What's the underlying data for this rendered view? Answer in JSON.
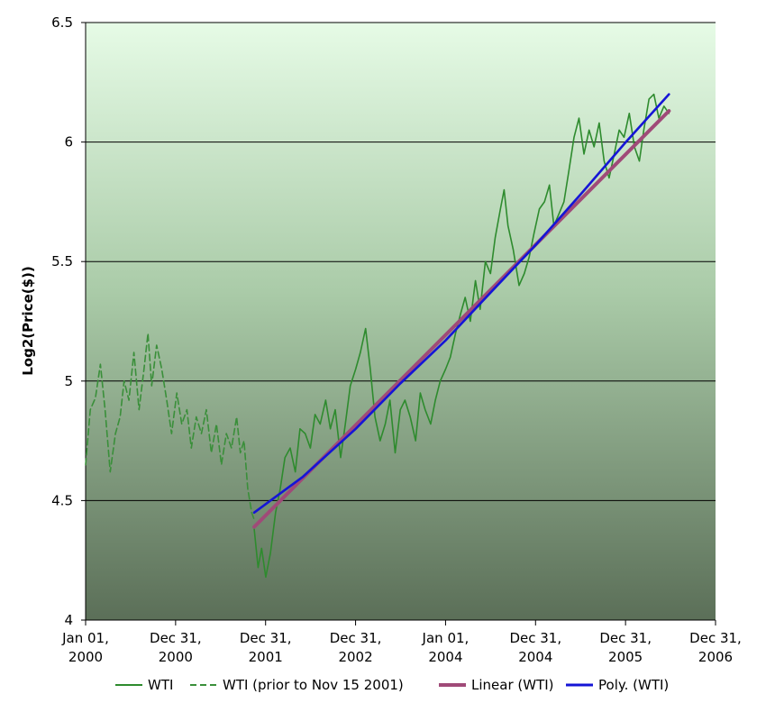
{
  "chart_data": {
    "type": "line",
    "title": "",
    "xlabel": "",
    "ylabel": "Log2(Price($))",
    "ylim": [
      4,
      6.5
    ],
    "y_ticks": [
      "4",
      "4.5",
      "5",
      "5.5",
      "6",
      "6.5"
    ],
    "xlim": [
      "2000-01-01",
      "2006-12-31"
    ],
    "x_ticks": [
      {
        "line1": "Jan 01,",
        "line2": "2000"
      },
      {
        "line1": "Dec 31,",
        "line2": "2000"
      },
      {
        "line1": "Dec 31,",
        "line2": "2001"
      },
      {
        "line1": "Dec 31,",
        "line2": "2002"
      },
      {
        "line1": "Jan 01,",
        "line2": "2004"
      },
      {
        "line1": "Dec 31,",
        "line2": "2004"
      },
      {
        "line1": "Dec 31,",
        "line2": "2005"
      },
      {
        "line1": "Dec 31,",
        "line2": "2006"
      }
    ],
    "grid": true,
    "legend_position": "bottom",
    "series": [
      {
        "name": "WTI (prior to Nov 15 2001)",
        "color": "#3a8f3a",
        "style": "dashed",
        "x": [
          "2000-01-01",
          "2000-01-20",
          "2000-02-10",
          "2000-03-01",
          "2000-03-20",
          "2000-04-10",
          "2000-05-01",
          "2000-05-20",
          "2000-06-05",
          "2000-06-25",
          "2000-07-15",
          "2000-08-05",
          "2000-08-25",
          "2000-09-10",
          "2000-09-25",
          "2000-10-15",
          "2000-11-05",
          "2000-11-25",
          "2000-12-15",
          "2001-01-05",
          "2001-01-25",
          "2001-02-15",
          "2001-03-05",
          "2001-03-25",
          "2001-04-15",
          "2001-05-05",
          "2001-05-25",
          "2001-06-15",
          "2001-07-05",
          "2001-07-25",
          "2001-08-15",
          "2001-09-05",
          "2001-09-20",
          "2001-10-05",
          "2001-10-20",
          "2001-11-05",
          "2001-11-15"
        ],
        "y": [
          4.65,
          4.88,
          4.93,
          5.07,
          4.88,
          4.62,
          4.78,
          4.85,
          5.0,
          4.92,
          5.12,
          4.88,
          5.05,
          5.2,
          4.98,
          5.15,
          5.05,
          4.92,
          4.78,
          4.95,
          4.82,
          4.88,
          4.72,
          4.85,
          4.78,
          4.88,
          4.7,
          4.82,
          4.65,
          4.78,
          4.72,
          4.85,
          4.7,
          4.75,
          4.55,
          4.45,
          4.42
        ]
      },
      {
        "name": "WTI",
        "color": "#2e8b2e",
        "style": "solid",
        "x": [
          "2001-11-15",
          "2001-12-01",
          "2001-12-15",
          "2002-01-01",
          "2002-01-20",
          "2002-02-10",
          "2002-03-01",
          "2002-03-20",
          "2002-04-10",
          "2002-05-01",
          "2002-05-20",
          "2002-06-10",
          "2002-07-01",
          "2002-07-20",
          "2002-08-10",
          "2002-09-01",
          "2002-09-20",
          "2002-10-10",
          "2002-11-01",
          "2002-11-20",
          "2002-12-10",
          "2003-01-01",
          "2003-01-20",
          "2003-02-10",
          "2003-03-01",
          "2003-03-20",
          "2003-04-10",
          "2003-05-01",
          "2003-05-20",
          "2003-06-10",
          "2003-07-01",
          "2003-07-20",
          "2003-08-10",
          "2003-09-01",
          "2003-09-20",
          "2003-10-10",
          "2003-11-01",
          "2003-11-20",
          "2003-12-10",
          "2004-01-01",
          "2004-01-20",
          "2004-02-10",
          "2004-03-01",
          "2004-03-20",
          "2004-04-10",
          "2004-05-01",
          "2004-05-20",
          "2004-06-10",
          "2004-07-01",
          "2004-07-20",
          "2004-08-10",
          "2004-08-25",
          "2004-09-10",
          "2004-10-01",
          "2004-10-25",
          "2004-11-15",
          "2004-12-05",
          "2004-12-25",
          "2005-01-15",
          "2005-02-05",
          "2005-02-25",
          "2005-03-15",
          "2005-04-05",
          "2005-04-25",
          "2005-05-15",
          "2005-06-05",
          "2005-06-25",
          "2005-07-15",
          "2005-08-05",
          "2005-08-25",
          "2005-09-15",
          "2005-10-05",
          "2005-10-25",
          "2005-11-15",
          "2005-12-05",
          "2005-12-25",
          "2006-01-15",
          "2006-02-05",
          "2006-02-25",
          "2006-03-15",
          "2006-04-05",
          "2006-04-25",
          "2006-05-15",
          "2006-06-05",
          "2006-06-25"
        ],
        "y": [
          4.38,
          4.22,
          4.3,
          4.18,
          4.28,
          4.45,
          4.55,
          4.68,
          4.72,
          4.62,
          4.8,
          4.78,
          4.72,
          4.86,
          4.82,
          4.92,
          4.8,
          4.88,
          4.68,
          4.82,
          4.98,
          5.05,
          5.12,
          5.22,
          5.05,
          4.85,
          4.75,
          4.82,
          4.92,
          4.7,
          4.88,
          4.92,
          4.85,
          4.75,
          4.95,
          4.88,
          4.82,
          4.92,
          5.0,
          5.05,
          5.1,
          5.2,
          5.28,
          5.35,
          5.25,
          5.42,
          5.3,
          5.5,
          5.45,
          5.6,
          5.72,
          5.8,
          5.65,
          5.55,
          5.4,
          5.45,
          5.52,
          5.62,
          5.72,
          5.75,
          5.82,
          5.65,
          5.7,
          5.75,
          5.88,
          6.02,
          6.1,
          5.95,
          6.05,
          5.98,
          6.08,
          5.92,
          5.85,
          5.95,
          6.05,
          6.02,
          6.12,
          5.98,
          5.92,
          6.05,
          6.18,
          6.2,
          6.1,
          6.15,
          6.12
        ]
      },
      {
        "name": "Linear (WTI)",
        "color": "#a04a78",
        "style": "solid",
        "x": [
          "2001-11-15",
          "2006-06-25"
        ],
        "y": [
          4.39,
          6.13
        ]
      },
      {
        "name": "Poly. (WTI)",
        "color": "#1515d6",
        "style": "solid",
        "x": [
          "2001-11-15",
          "2002-06-01",
          "2003-01-01",
          "2003-07-01",
          "2004-01-01",
          "2004-07-01",
          "2005-01-01",
          "2005-07-01",
          "2006-01-01",
          "2006-06-25"
        ],
        "y": [
          4.45,
          4.6,
          4.8,
          4.99,
          5.17,
          5.37,
          5.57,
          5.78,
          6.0,
          6.2
        ]
      }
    ]
  }
}
